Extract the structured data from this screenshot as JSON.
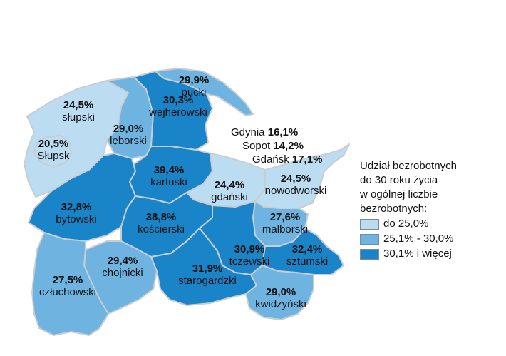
{
  "colors": {
    "low": "#bcdcf1",
    "mid": "#6fb3e0",
    "high": "#1a84c9",
    "border": "#c8cdd2"
  },
  "legend": {
    "title_lines": [
      "Udział bezrobotnych",
      "do 30 roku życia",
      "w ogólnej liczbie",
      "bezrobotnych:"
    ],
    "items": [
      {
        "label": "do 25,0%",
        "color": "#bcdcf1"
      },
      {
        "label": "25,1% - 30,0%",
        "color": "#6fb3e0"
      },
      {
        "label": "30,1% i więcej",
        "color": "#1a84c9"
      }
    ]
  },
  "regions": [
    {
      "name": "słupski",
      "value": "24,5%",
      "class": "low"
    },
    {
      "name": "Słupsk",
      "value": "20,5%",
      "class": "low"
    },
    {
      "name": "lęborski",
      "value": "29,0%",
      "class": "mid"
    },
    {
      "name": "wejherowski",
      "value": "30,3%",
      "class": "high"
    },
    {
      "name": "pucki",
      "value": "29,9%",
      "class": "mid"
    },
    {
      "name": "kartuski",
      "value": "39,4%",
      "class": "high"
    },
    {
      "name": "gdański",
      "value": "24,4%",
      "class": "low"
    },
    {
      "name": "nowodworski",
      "value": "24,5%",
      "class": "low"
    },
    {
      "name": "bytowski",
      "value": "32,8%",
      "class": "high"
    },
    {
      "name": "kościerski",
      "value": "38,8%",
      "class": "high"
    },
    {
      "name": "malborski",
      "value": "27,6%",
      "class": "mid"
    },
    {
      "name": "tczewski",
      "value": "30,9%",
      "class": "high"
    },
    {
      "name": "sztumski",
      "value": "32,4%",
      "class": "high"
    },
    {
      "name": "chojnicki",
      "value": "29,4%",
      "class": "mid"
    },
    {
      "name": "starogardzki",
      "value": "31,9%",
      "class": "high"
    },
    {
      "name": "człuchowski",
      "value": "27,5%",
      "class": "mid"
    },
    {
      "name": "kwidzyński",
      "value": "29,0%",
      "class": "mid"
    }
  ],
  "cities": [
    {
      "name": "Gdynia",
      "value": "16,1%"
    },
    {
      "name": "Sopot",
      "value": "14,2%"
    },
    {
      "name": "Gdańsk",
      "value": "17,1%"
    }
  ]
}
